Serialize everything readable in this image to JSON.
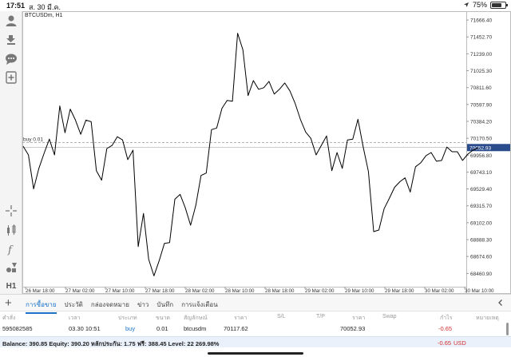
{
  "status_bar": {
    "time": "17:51",
    "date": "ส. 30 มี.ค.",
    "battery": "75%",
    "battery_level": 0.75
  },
  "chart": {
    "symbol_label": "BTCUSDm, H1",
    "order_line_label": "buy 0.01",
    "current_price_label": "70052.93",
    "line_color": "#000000",
    "price_tag_color": "#2b4c8c"
  },
  "toolbar": {
    "icons": [
      "account-icon",
      "trade-icon",
      "chat-icon",
      "add-icon",
      "crosshair-icon",
      "chart-type-icon",
      "function-icon",
      "objects-icon"
    ],
    "timeframe_label": "H1"
  },
  "chart_data": {
    "type": "line",
    "x_ticks": [
      "26 Mar 18:00",
      "27 Mar 02:00",
      "27 Mar 10:00",
      "27 Mar 18:00",
      "28 Mar 02:00",
      "28 Mar 10:00",
      "28 Mar 18:00",
      "29 Mar 02:00",
      "29 Mar 10:00",
      "29 Mar 18:00",
      "30 Mar 02:00",
      "30 Mar 10:00"
    ],
    "y_ticks": [
      "71666.40",
      "71452.70",
      "71239.00",
      "71025.30",
      "70811.60",
      "70597.90",
      "70384.20",
      "70170.50",
      "69956.80",
      "69743.10",
      "69529.40",
      "69315.70",
      "69102.00",
      "68888.30",
      "68674.60",
      "68460.90"
    ],
    "ylim": [
      68342.8,
      71738.0
    ],
    "values": [
      70070,
      69960,
      69530,
      69790,
      69980,
      70160,
      69960,
      70580,
      70240,
      70540,
      70400,
      70220,
      70400,
      70380,
      69760,
      69640,
      70040,
      70080,
      70190,
      70150,
      69900,
      70020,
      68800,
      69220,
      68640,
      68430,
      68620,
      68840,
      68850,
      69400,
      69460,
      69290,
      69070,
      69320,
      69700,
      69730,
      70280,
      70300,
      70550,
      70650,
      70640,
      71500,
      71290,
      70710,
      70900,
      70790,
      70810,
      70890,
      70730,
      70790,
      70870,
      70770,
      70610,
      70410,
      70250,
      70170,
      69960,
      70080,
      70200,
      69760,
      69990,
      69790,
      70150,
      70160,
      70410,
      70060,
      69750,
      68990,
      69010,
      69280,
      69410,
      69550,
      69620,
      69670,
      69490,
      69810,
      69860,
      69950,
      69990,
      69880,
      69890,
      70060,
      70000,
      70000,
      69890,
      69970,
      70020,
      70050
    ],
    "order_price": 70117.62,
    "current_price": 70052.93,
    "grid": false
  },
  "tabs": [
    "การซื้อขาย",
    "ประวัติ",
    "กล่องจดหมาย",
    "ข่าว",
    "บันทึก",
    "การแจ้งเตือน"
  ],
  "table": {
    "headers": [
      "คำสั่ง",
      "เวลา",
      "ประเภท",
      "ขนาด",
      "สัญลักษณ์",
      "ราคา",
      "S/L",
      "T/P",
      "ราคา",
      "Swap",
      "กำไร",
      "หมายเหตุ"
    ],
    "row": {
      "order": "595082585",
      "time": "03.30 10:51",
      "type": "buy",
      "size": "0.01",
      "symbol": "btcusdm",
      "price": "70117.62",
      "sl": "",
      "tp": "",
      "current_price": "70052.93",
      "swap": "",
      "profit": "-0.65"
    }
  },
  "footer": {
    "summary": "Balance: 390.85 Equity: 390.20 หลักประกัน: 1.75 ฟรี: 388.45 Level: 22 269.98%",
    "total": "-0.65",
    "currency": "USD"
  }
}
